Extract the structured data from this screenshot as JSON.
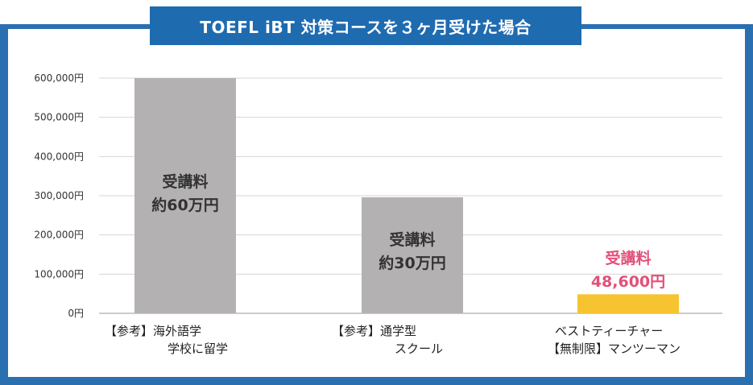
{
  "header": {
    "title": "TOEFL iBT 対策コースを３ヶ月受けた場合"
  },
  "colors": {
    "frame": "#2a6fb0",
    "title_bg": "#1f6bb0",
    "bar_gray": "#b3b1b2",
    "bar_highlight": "#f6c431",
    "highlight_text": "#e2507a"
  },
  "chart_data": {
    "type": "bar",
    "categories": [
      [
        "【参考】海外語学",
        "学校に留学"
      ],
      [
        "【参考】通学型",
        "スクール"
      ],
      [
        "ベストティーチャー",
        "【無制限】マンツーマン"
      ]
    ],
    "values": [
      600000,
      296000,
      48600
    ],
    "ylim": [
      0,
      600000
    ],
    "yticks": [
      0,
      100000,
      200000,
      300000,
      400000,
      500000,
      600000
    ],
    "ytick_labels": [
      "0円",
      "100,000円",
      "200,000円",
      "300,000円",
      "400,000円",
      "500,000円",
      "600,000円"
    ],
    "bar_labels": [
      [
        "受講料",
        "約60万円"
      ],
      [
        "受講料",
        "約30万円"
      ],
      [
        "受講料",
        "48,600円"
      ]
    ],
    "grid": true,
    "legend": "none"
  }
}
